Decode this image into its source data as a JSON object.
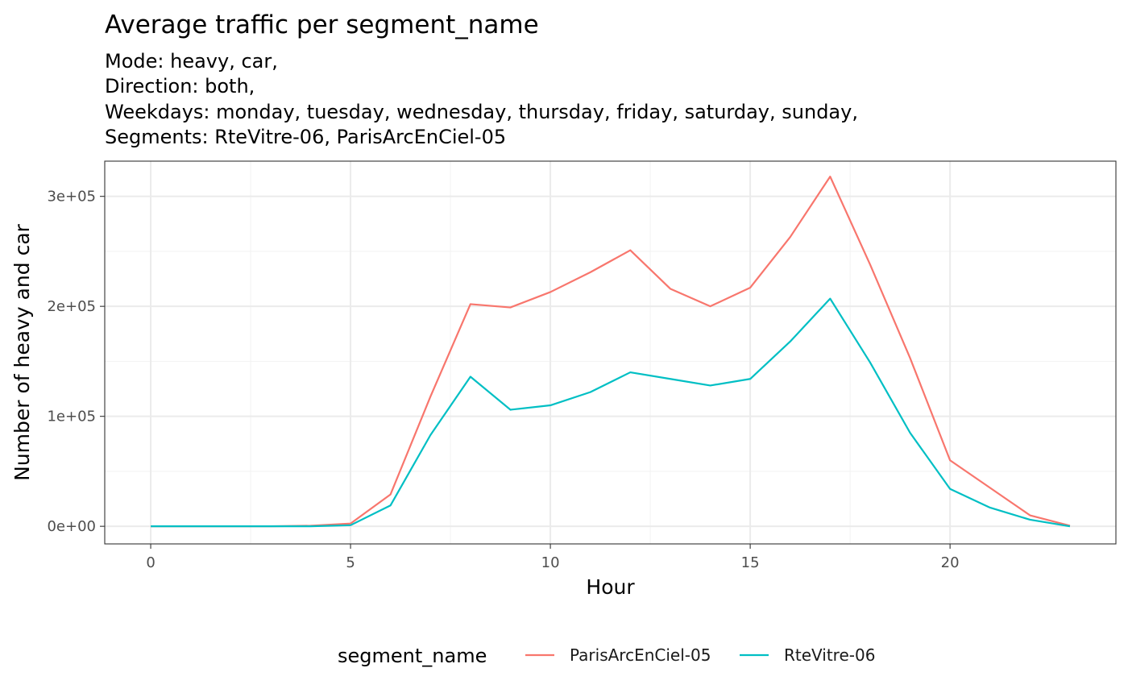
{
  "chart_data": {
    "type": "line",
    "title": "Average traffic per segment_name",
    "subtitle_lines": [
      "Mode: heavy, car,",
      "Direction: both,",
      "Weekdays: monday, tuesday, wednesday, thursday, friday, saturday, sunday,",
      "Segments: RteVitre-06, ParisArcEnCiel-05"
    ],
    "xlabel": "Hour",
    "ylabel": "Number of heavy and car",
    "xlim": [
      -1.15,
      24.15
    ],
    "ylim": [
      -16000,
      332000
    ],
    "x_ticks": [
      0,
      5,
      10,
      15,
      20
    ],
    "x_tick_labels": [
      "0",
      "5",
      "10",
      "15",
      "20"
    ],
    "y_ticks": [
      0,
      100000,
      200000,
      300000
    ],
    "y_tick_labels": [
      "0e+00",
      "1e+05",
      "2e+05",
      "3e+05"
    ],
    "grid": true,
    "legend": {
      "position": "bottom",
      "title": "segment_name"
    },
    "x": [
      0,
      1,
      2,
      3,
      4,
      5,
      6,
      7,
      8,
      9,
      10,
      11,
      12,
      13,
      14,
      15,
      16,
      17,
      18,
      19,
      20,
      21,
      22,
      23
    ],
    "series": [
      {
        "name": "ParisArcEnCiel-05",
        "color": "#F8766D",
        "values": [
          0,
          0,
          0,
          0,
          500,
          2500,
          29000,
          118000,
          202000,
          199000,
          213000,
          231000,
          251000,
          216000,
          200000,
          217000,
          263000,
          318000,
          238000,
          153000,
          60000,
          35000,
          10000,
          500
        ]
      },
      {
        "name": "RteVitre-06",
        "color": "#00BFC4",
        "values": [
          0,
          0,
          0,
          0,
          0,
          1000,
          19000,
          83000,
          136000,
          106000,
          110000,
          122000,
          140000,
          134000,
          128000,
          134000,
          168000,
          207000,
          149000,
          85000,
          34000,
          17000,
          6000,
          0
        ]
      }
    ]
  }
}
